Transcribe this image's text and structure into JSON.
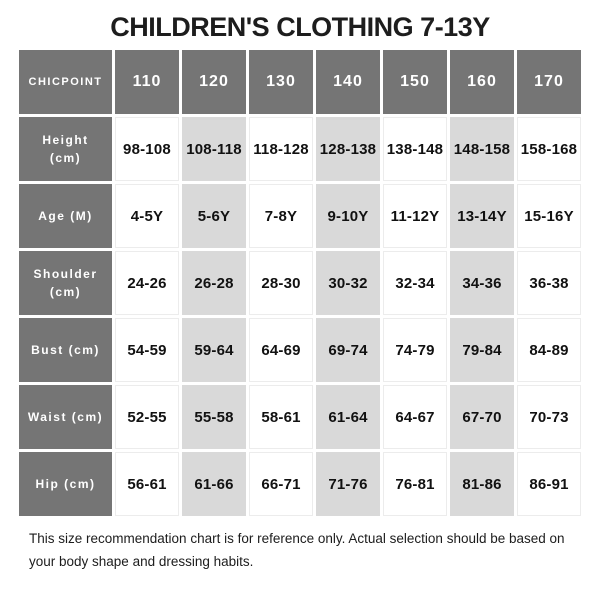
{
  "title": "CHILDREN'S CLOTHING 7-13Y",
  "chart_data": {
    "type": "table",
    "title": "CHILDREN'S CLOTHING 7-13Y",
    "corner_label": "CHICPOINT",
    "columns": [
      "110",
      "120",
      "130",
      "140",
      "150",
      "160",
      "170"
    ],
    "rows": [
      {
        "label": "Height (cm)",
        "values": [
          "98-108",
          "108-118",
          "118-128",
          "128-138",
          "138-148",
          "148-158",
          "158-168"
        ]
      },
      {
        "label": "Age (M)",
        "values": [
          "4-5Y",
          "5-6Y",
          "7-8Y",
          "9-10Y",
          "11-12Y",
          "13-14Y",
          "15-16Y"
        ]
      },
      {
        "label": "Shoulder (cm)",
        "values": [
          "24-26",
          "26-28",
          "28-30",
          "30-32",
          "32-34",
          "34-36",
          "36-38"
        ]
      },
      {
        "label": "Bust (cm)",
        "values": [
          "54-59",
          "59-64",
          "64-69",
          "69-74",
          "74-79",
          "79-84",
          "84-89"
        ]
      },
      {
        "label": "Waist (cm)",
        "values": [
          "52-55",
          "55-58",
          "58-61",
          "61-64",
          "64-67",
          "67-70",
          "70-73"
        ]
      },
      {
        "label": "Hip (cm)",
        "values": [
          "56-61",
          "61-66",
          "66-71",
          "71-76",
          "76-81",
          "81-86",
          "86-91"
        ]
      }
    ],
    "layout": {
      "highlighted_columns": [
        "120",
        "140",
        "160"
      ],
      "header_bg": "#757575",
      "alt_column_bg": "#d9d9d9",
      "cell_bg": "#ffffff",
      "header_text": "#ffffff",
      "cell_text": "#111111"
    }
  },
  "footer": {
    "note": "This size recommendation chart is for reference only. Actual selection should be based on your body shape and dressing habits."
  }
}
